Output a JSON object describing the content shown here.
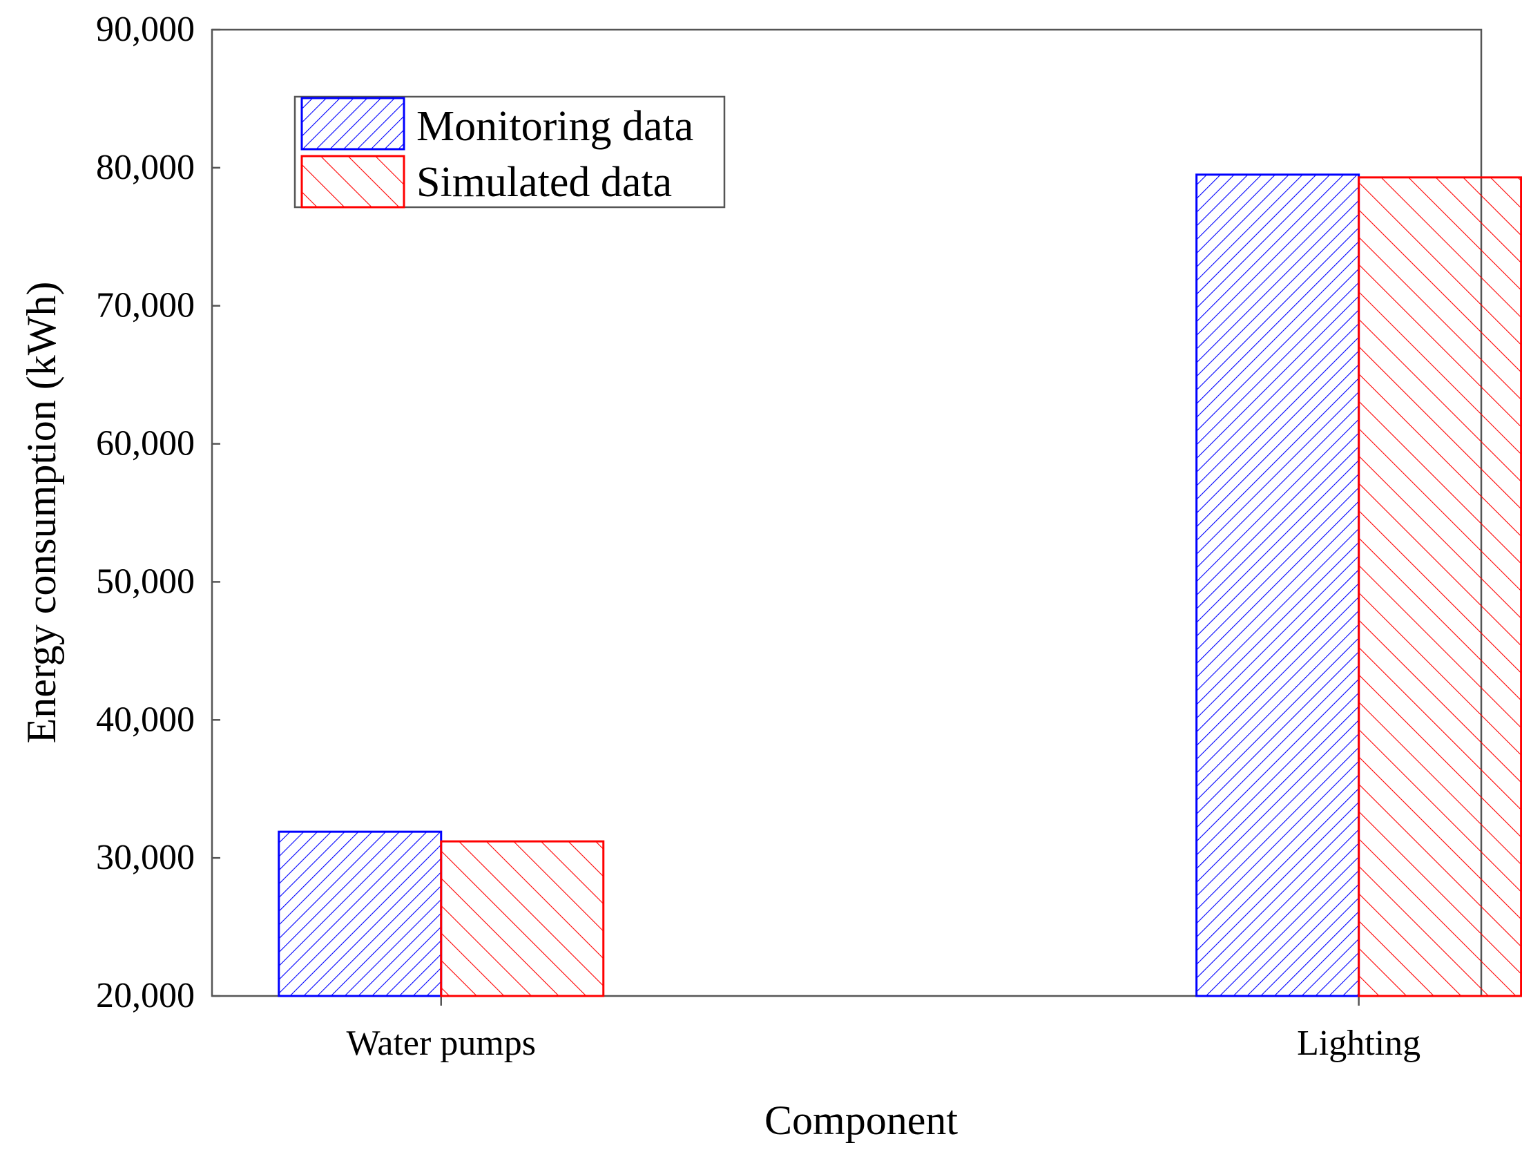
{
  "chart_data": {
    "type": "bar",
    "title": "",
    "xlabel": "Component",
    "ylabel": "Energy consumption (kWh)",
    "categories": [
      "Water pumps",
      "Lighting"
    ],
    "ylim": [
      20000,
      90000
    ],
    "yticks": [
      20000,
      30000,
      40000,
      50000,
      60000,
      70000,
      80000,
      90000
    ],
    "ytick_labels": [
      "20,000",
      "30,000",
      "40,000",
      "50,000",
      "60,000",
      "70,000",
      "80,000",
      "90,000"
    ],
    "grid": false,
    "legend_position": "top-left",
    "series": [
      {
        "name": "Monitoring data",
        "color": "#0000ff",
        "hatch": "dense-forward-diagonal",
        "values": [
          31900,
          79500
        ]
      },
      {
        "name": "Simulated data",
        "color": "#ff0000",
        "hatch": "sparse-back-diagonal",
        "values": [
          31200,
          79300
        ]
      }
    ]
  }
}
